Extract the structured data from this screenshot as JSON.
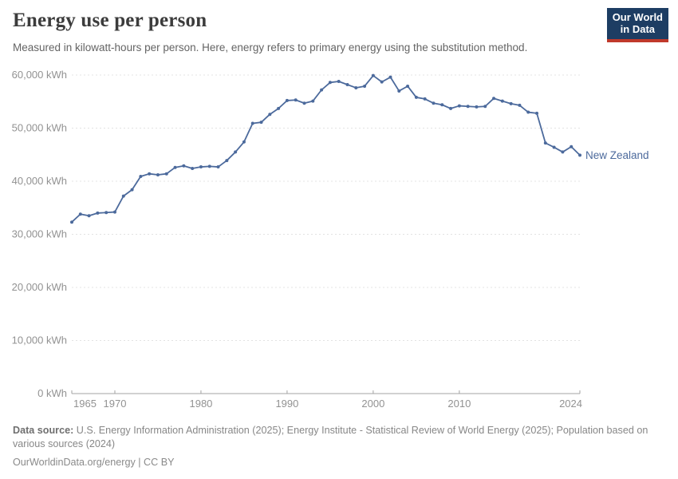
{
  "header": {
    "title": "Energy use per person",
    "subtitle": "Measured in kilowatt-hours per person. Here, energy refers to primary energy using the substitution method.",
    "logo": {
      "line1": "Our World",
      "line2": "in Data"
    }
  },
  "chart_data": {
    "type": "line",
    "title": "Energy use per person",
    "unit": "kWh",
    "entity": "New Zealand",
    "xlim": [
      1965,
      2024
    ],
    "ylim": [
      0,
      60000
    ],
    "grid": "horizontal-dashed",
    "legend_position": "end-of-line-label",
    "x_ticks": [
      1965,
      1970,
      1980,
      1990,
      2000,
      2010,
      2024
    ],
    "y_ticks": [
      {
        "value": 0,
        "label": "0 kWh"
      },
      {
        "value": 10000,
        "label": "10,000 kWh"
      },
      {
        "value": 20000,
        "label": "20,000 kWh"
      },
      {
        "value": 30000,
        "label": "30,000 kWh"
      },
      {
        "value": 40000,
        "label": "40,000 kWh"
      },
      {
        "value": 50000,
        "label": "50,000 kWh"
      },
      {
        "value": 60000,
        "label": "60,000 kWh"
      }
    ],
    "x": [
      1965,
      1966,
      1967,
      1968,
      1969,
      1970,
      1971,
      1972,
      1973,
      1974,
      1975,
      1976,
      1977,
      1978,
      1979,
      1980,
      1981,
      1982,
      1983,
      1984,
      1985,
      1986,
      1987,
      1988,
      1989,
      1990,
      1991,
      1992,
      1993,
      1994,
      1995,
      1996,
      1997,
      1998,
      1999,
      2000,
      2001,
      2002,
      2003,
      2004,
      2005,
      2006,
      2007,
      2008,
      2009,
      2010,
      2011,
      2012,
      2013,
      2014,
      2015,
      2016,
      2017,
      2018,
      2019,
      2020,
      2021,
      2022,
      2023,
      2024
    ],
    "series": [
      {
        "name": "New Zealand",
        "color": "#4c6a9c",
        "values": [
          32300,
          33800,
          33500,
          34000,
          34100,
          34200,
          37200,
          38400,
          40900,
          41400,
          41200,
          41400,
          42600,
          42900,
          42400,
          42700,
          42800,
          42700,
          43900,
          45500,
          47400,
          50900,
          51100,
          52600,
          53700,
          55200,
          55300,
          54700,
          55100,
          57200,
          58600,
          58800,
          58200,
          57600,
          57900,
          59900,
          58700,
          59600,
          57000,
          57900,
          55800,
          55500,
          54700,
          54400,
          53700,
          54200,
          54100,
          54000,
          54100,
          55600,
          55100,
          54600,
          54300,
          53000,
          52800,
          47200,
          46400,
          45500,
          46500,
          44900
        ]
      }
    ],
    "colors": {
      "line": "#4c6a9c",
      "gridline": "#e3e3e3",
      "axis": "#a3a3a3",
      "tick_label": "#929292"
    }
  },
  "footer": {
    "source_label": "Data source:",
    "source_text": " U.S. Energy Information Administration (2025); Energy Institute - Statistical Review of World Energy (2025); Population based on various sources (2024)",
    "link_text": "OurWorldinData.org/energy | CC BY"
  }
}
